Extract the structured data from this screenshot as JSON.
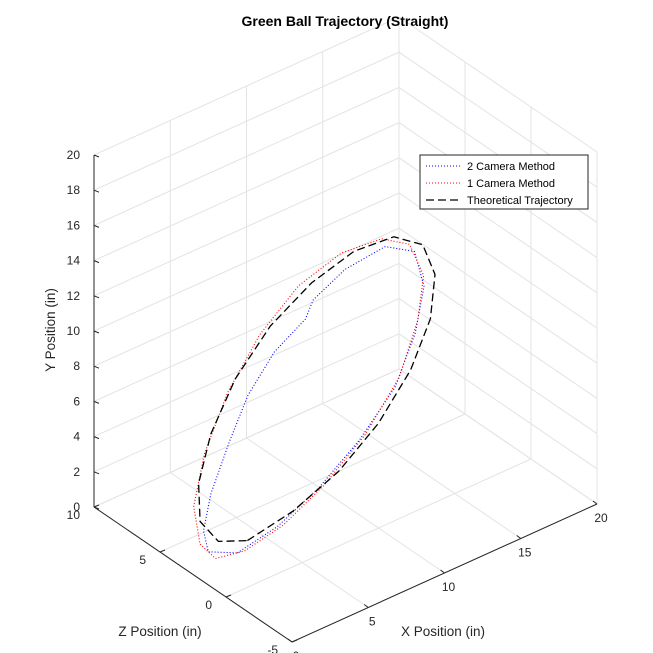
{
  "chart_data": {
    "type": "line3d",
    "title": "Green Ball Trajectory (Straight)",
    "xlabel": "X Position (in)",
    "ylabel": "Y Position (in)",
    "zlabel": "Z Position (in)",
    "xlim": [
      0,
      20
    ],
    "ylim": [
      0,
      20
    ],
    "zlim": [
      -5,
      10
    ],
    "xticks": [
      "0",
      "5",
      "10",
      "15",
      "20"
    ],
    "yticks": [
      "0",
      "2",
      "4",
      "6",
      "8",
      "10",
      "12",
      "14",
      "16",
      "18",
      "20"
    ],
    "zticks": [
      "-5",
      "0",
      "5",
      "10"
    ],
    "grid": true,
    "legend_position": "top-right",
    "series": [
      {
        "name": "2 Camera Method",
        "color": "#0000ff",
        "style": "dotted",
        "points": [
          [
            3.0,
            0.0,
            2.6
          ],
          [
            5.8,
            0.3,
            2.8
          ],
          [
            8.8,
            1.2,
            3.1
          ],
          [
            11.7,
            2.6,
            3.4
          ],
          [
            14.2,
            4.5,
            3.6
          ],
          [
            15.7,
            6.9,
            3.8
          ],
          [
            16.1,
            9.5,
            3.6
          ],
          [
            15.3,
            11.9,
            3.4
          ],
          [
            13.2,
            13.1,
            3.2
          ],
          [
            10.4,
            13.0,
            3.0
          ],
          [
            8.4,
            12.0,
            3.1
          ],
          [
            7.8,
            11.2,
            3.0
          ],
          [
            5.6,
            10.3,
            2.8
          ],
          [
            3.7,
            8.7,
            2.6
          ],
          [
            2.3,
            6.7,
            2.4
          ],
          [
            1.0,
            4.3,
            2.3
          ],
          [
            0.6,
            2.3,
            2.4
          ],
          [
            1.0,
            0.9,
            2.5
          ],
          [
            3.0,
            0.0,
            2.6
          ]
        ]
      },
      {
        "name": "1 Camera Method",
        "color": "#ff0000",
        "style": "dotted",
        "points": [
          [
            3.3,
            0.1,
            2.4
          ],
          [
            6.0,
            0.4,
            2.6
          ],
          [
            9.0,
            1.4,
            2.9
          ],
          [
            11.8,
            3.0,
            3.1
          ],
          [
            14.2,
            5.2,
            3.3
          ],
          [
            15.6,
            7.8,
            3.5
          ],
          [
            15.9,
            10.3,
            3.4
          ],
          [
            14.8,
            12.6,
            3.2
          ],
          [
            12.8,
            13.8,
            3.0
          ],
          [
            10.0,
            14.2,
            2.8
          ],
          [
            7.0,
            13.6,
            2.6
          ],
          [
            4.3,
            12.0,
            2.4
          ],
          [
            2.0,
            9.7,
            2.2
          ],
          [
            0.4,
            6.9,
            2.1
          ],
          [
            -0.3,
            4.2,
            2.1
          ],
          [
            0.2,
            1.8,
            2.2
          ],
          [
            1.3,
            0.5,
            2.3
          ],
          [
            3.3,
            0.1,
            2.4
          ]
        ]
      },
      {
        "name": "Theoretical Trajectory",
        "color": "#000000",
        "style": "dashed",
        "points": [
          [
            4.0,
            0.1,
            3.0
          ],
          [
            7.0,
            0.6,
            3.0
          ],
          [
            10.0,
            1.7,
            3.0
          ],
          [
            12.6,
            3.4,
            3.0
          ],
          [
            14.7,
            5.6,
            3.0
          ],
          [
            16.0,
            8.0,
            3.0
          ],
          [
            16.3,
            10.4,
            3.0
          ],
          [
            15.5,
            12.4,
            3.0
          ],
          [
            13.6,
            13.6,
            3.0
          ],
          [
            11.0,
            13.8,
            3.0
          ],
          [
            8.2,
            13.1,
            3.0
          ],
          [
            5.5,
            11.7,
            3.0
          ],
          [
            3.2,
            9.6,
            3.0
          ],
          [
            1.6,
            7.1,
            3.0
          ],
          [
            0.8,
            4.6,
            3.0
          ],
          [
            0.9,
            2.4,
            3.0
          ],
          [
            2.1,
            0.8,
            3.0
          ],
          [
            4.0,
            0.1,
            3.0
          ]
        ]
      }
    ]
  }
}
